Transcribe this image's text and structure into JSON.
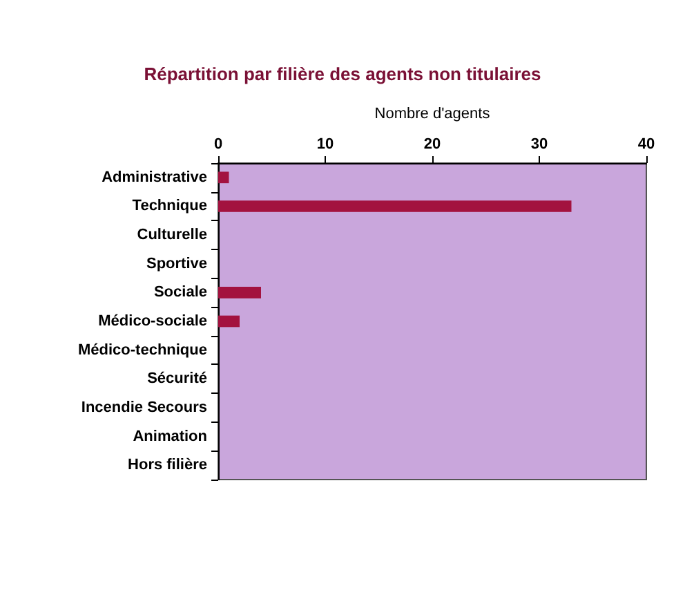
{
  "chart_data": {
    "type": "bar",
    "orientation": "horizontal",
    "title": "Répartition par filière des agents non titulaires",
    "xlabel": "Nombre d'agents",
    "categories": [
      "Administrative",
      "Technique",
      "Culturelle",
      "Sportive",
      "Sociale",
      "Médico-sociale",
      "Médico-technique",
      "Sécurité",
      "Incendie Secours",
      "Animation",
      "Hors filière"
    ],
    "values": [
      1,
      33,
      0,
      0,
      4,
      2,
      0,
      0,
      0,
      0,
      0
    ],
    "color": "#a3123f",
    "xlim": [
      0,
      40
    ],
    "xticks": [
      0,
      10,
      20,
      30,
      40
    ],
    "grid": false
  }
}
